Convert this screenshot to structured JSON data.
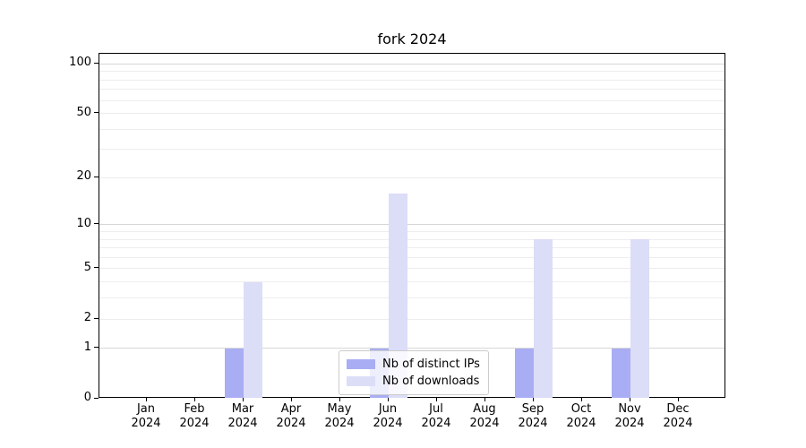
{
  "chart_data": {
    "type": "bar",
    "title": "fork 2024",
    "categories": [
      "Jan 2024",
      "Feb 2024",
      "Mar 2024",
      "Apr 2024",
      "May 2024",
      "Jun 2024",
      "Jul 2024",
      "Aug 2024",
      "Sep 2024",
      "Oct 2024",
      "Nov 2024",
      "Dec 2024"
    ],
    "series": [
      {
        "name": "Nb of distinct IPs",
        "color": "#a9adf3",
        "values": [
          0,
          0,
          1,
          0,
          0,
          1,
          0,
          0,
          1,
          0,
          1,
          0
        ]
      },
      {
        "name": "Nb of downloads",
        "color": "#dcddf7",
        "values": [
          0,
          0,
          4,
          0,
          0,
          16,
          0,
          0,
          8,
          0,
          8,
          0
        ]
      }
    ],
    "y_axis": {
      "scale": "log1p",
      "tick_values": [
        0,
        1,
        2,
        5,
        10,
        20,
        50,
        100
      ],
      "tick_labels": [
        "0",
        "1",
        "2",
        "5",
        "10",
        "20",
        "50",
        "100"
      ],
      "range": [
        0,
        115
      ],
      "grid": true,
      "grid_minor_values": [
        2,
        3,
        4,
        5,
        6,
        7,
        8,
        9,
        20,
        30,
        40,
        50,
        60,
        70,
        80,
        90
      ],
      "grid_major_values": [
        1,
        10,
        100
      ]
    },
    "legend": {
      "position": "lower center"
    }
  }
}
